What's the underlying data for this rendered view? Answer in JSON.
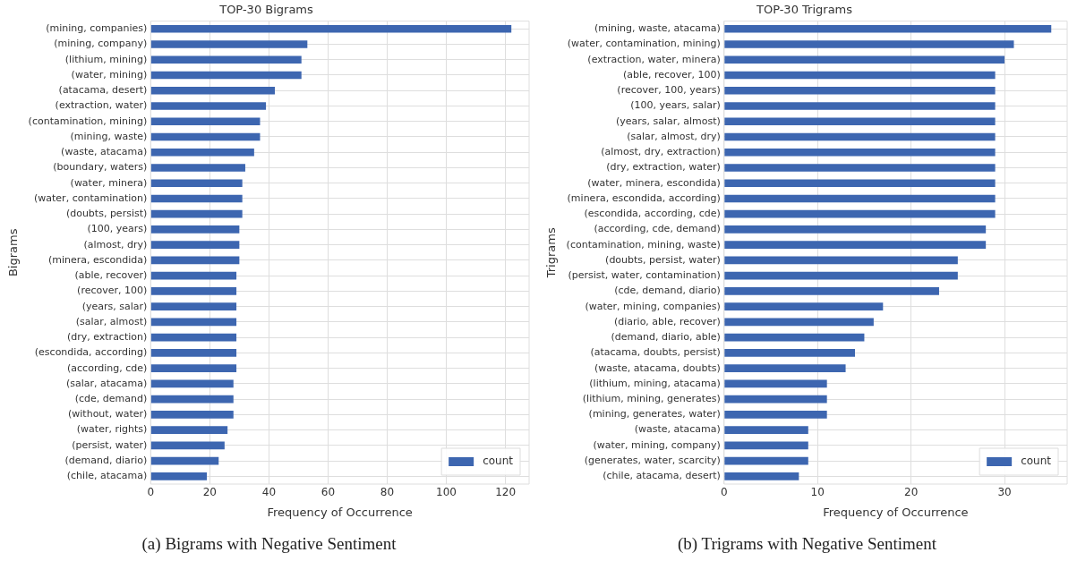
{
  "chart_data": [
    {
      "type": "bar",
      "orientation": "horizontal",
      "title": "TOP-30 Bigrams",
      "xlabel": "Frequency of Occurrence",
      "ylabel": "Bigrams",
      "categories": [
        "(mining, companies)",
        "(mining, company)",
        "(lithium, mining)",
        "(water, mining)",
        "(atacama, desert)",
        "(extraction, water)",
        "(contamination, mining)",
        "(mining, waste)",
        "(waste, atacama)",
        "(boundary, waters)",
        "(water, minera)",
        "(water, contamination)",
        "(doubts, persist)",
        "(100, years)",
        "(almost, dry)",
        "(minera, escondida)",
        "(able, recover)",
        "(recover, 100)",
        "(years, salar)",
        "(salar, almost)",
        "(dry, extraction)",
        "(escondida, according)",
        "(according, cde)",
        "(salar, atacama)",
        "(cde, demand)",
        "(without, water)",
        "(water, rights)",
        "(persist, water)",
        "(demand, diario)",
        "(chile, atacama)"
      ],
      "series": [
        {
          "name": "count",
          "color": "#3d66b0",
          "values": [
            122,
            53,
            51,
            51,
            42,
            39,
            37,
            37,
            35,
            32,
            31,
            31,
            31,
            30,
            30,
            30,
            29,
            29,
            29,
            29,
            29,
            29,
            29,
            28,
            28,
            28,
            26,
            25,
            23,
            19
          ]
        }
      ],
      "xlim": [
        0,
        128
      ],
      "xticks": [
        0,
        20,
        40,
        60,
        80,
        100,
        120
      ],
      "grid": true,
      "legend": "bottom right",
      "annotations": [
        "(a) Bigrams with Negative Sentiment"
      ]
    },
    {
      "type": "bar",
      "orientation": "horizontal",
      "title": "TOP-30 Trigrams",
      "xlabel": "Frequency of Occurrence",
      "ylabel": "Trigrams",
      "categories": [
        "(mining, waste, atacama)",
        "(water, contamination, mining)",
        "(extraction, water, minera)",
        "(able, recover, 100)",
        "(recover, 100, years)",
        "(100, years, salar)",
        "(years, salar, almost)",
        "(salar, almost, dry)",
        "(almost, dry, extraction)",
        "(dry, extraction, water)",
        "(water, minera, escondida)",
        "(minera, escondida, according)",
        "(escondida, according, cde)",
        "(according, cde, demand)",
        "(contamination, mining, waste)",
        "(doubts, persist, water)",
        "(persist, water, contamination)",
        "(cde, demand, diario)",
        "(water, mining, companies)",
        "(diario, able, recover)",
        "(demand, diario, able)",
        "(atacama, doubts, persist)",
        "(waste, atacama, doubts)",
        "(lithium, mining, atacama)",
        "(lithium, mining, generates)",
        "(mining, generates, water)",
        "(waste, atacama)",
        "(water, mining, company)",
        "(generates, water, scarcity)",
        "(chile, atacama, desert)"
      ],
      "series": [
        {
          "name": "count",
          "color": "#3d66b0",
          "values": [
            35,
            31,
            30,
            29,
            29,
            29,
            29,
            29,
            29,
            29,
            29,
            29,
            29,
            28,
            28,
            25,
            25,
            23,
            17,
            16,
            15,
            14,
            13,
            11,
            11,
            11,
            9,
            9,
            9,
            8
          ]
        }
      ],
      "xlim": [
        0,
        36.7
      ],
      "xticks": [
        0,
        10,
        20,
        30
      ],
      "grid": true,
      "legend": "bottom right",
      "annotations": [
        "(b) Trigrams with Negative Sentiment"
      ]
    }
  ]
}
